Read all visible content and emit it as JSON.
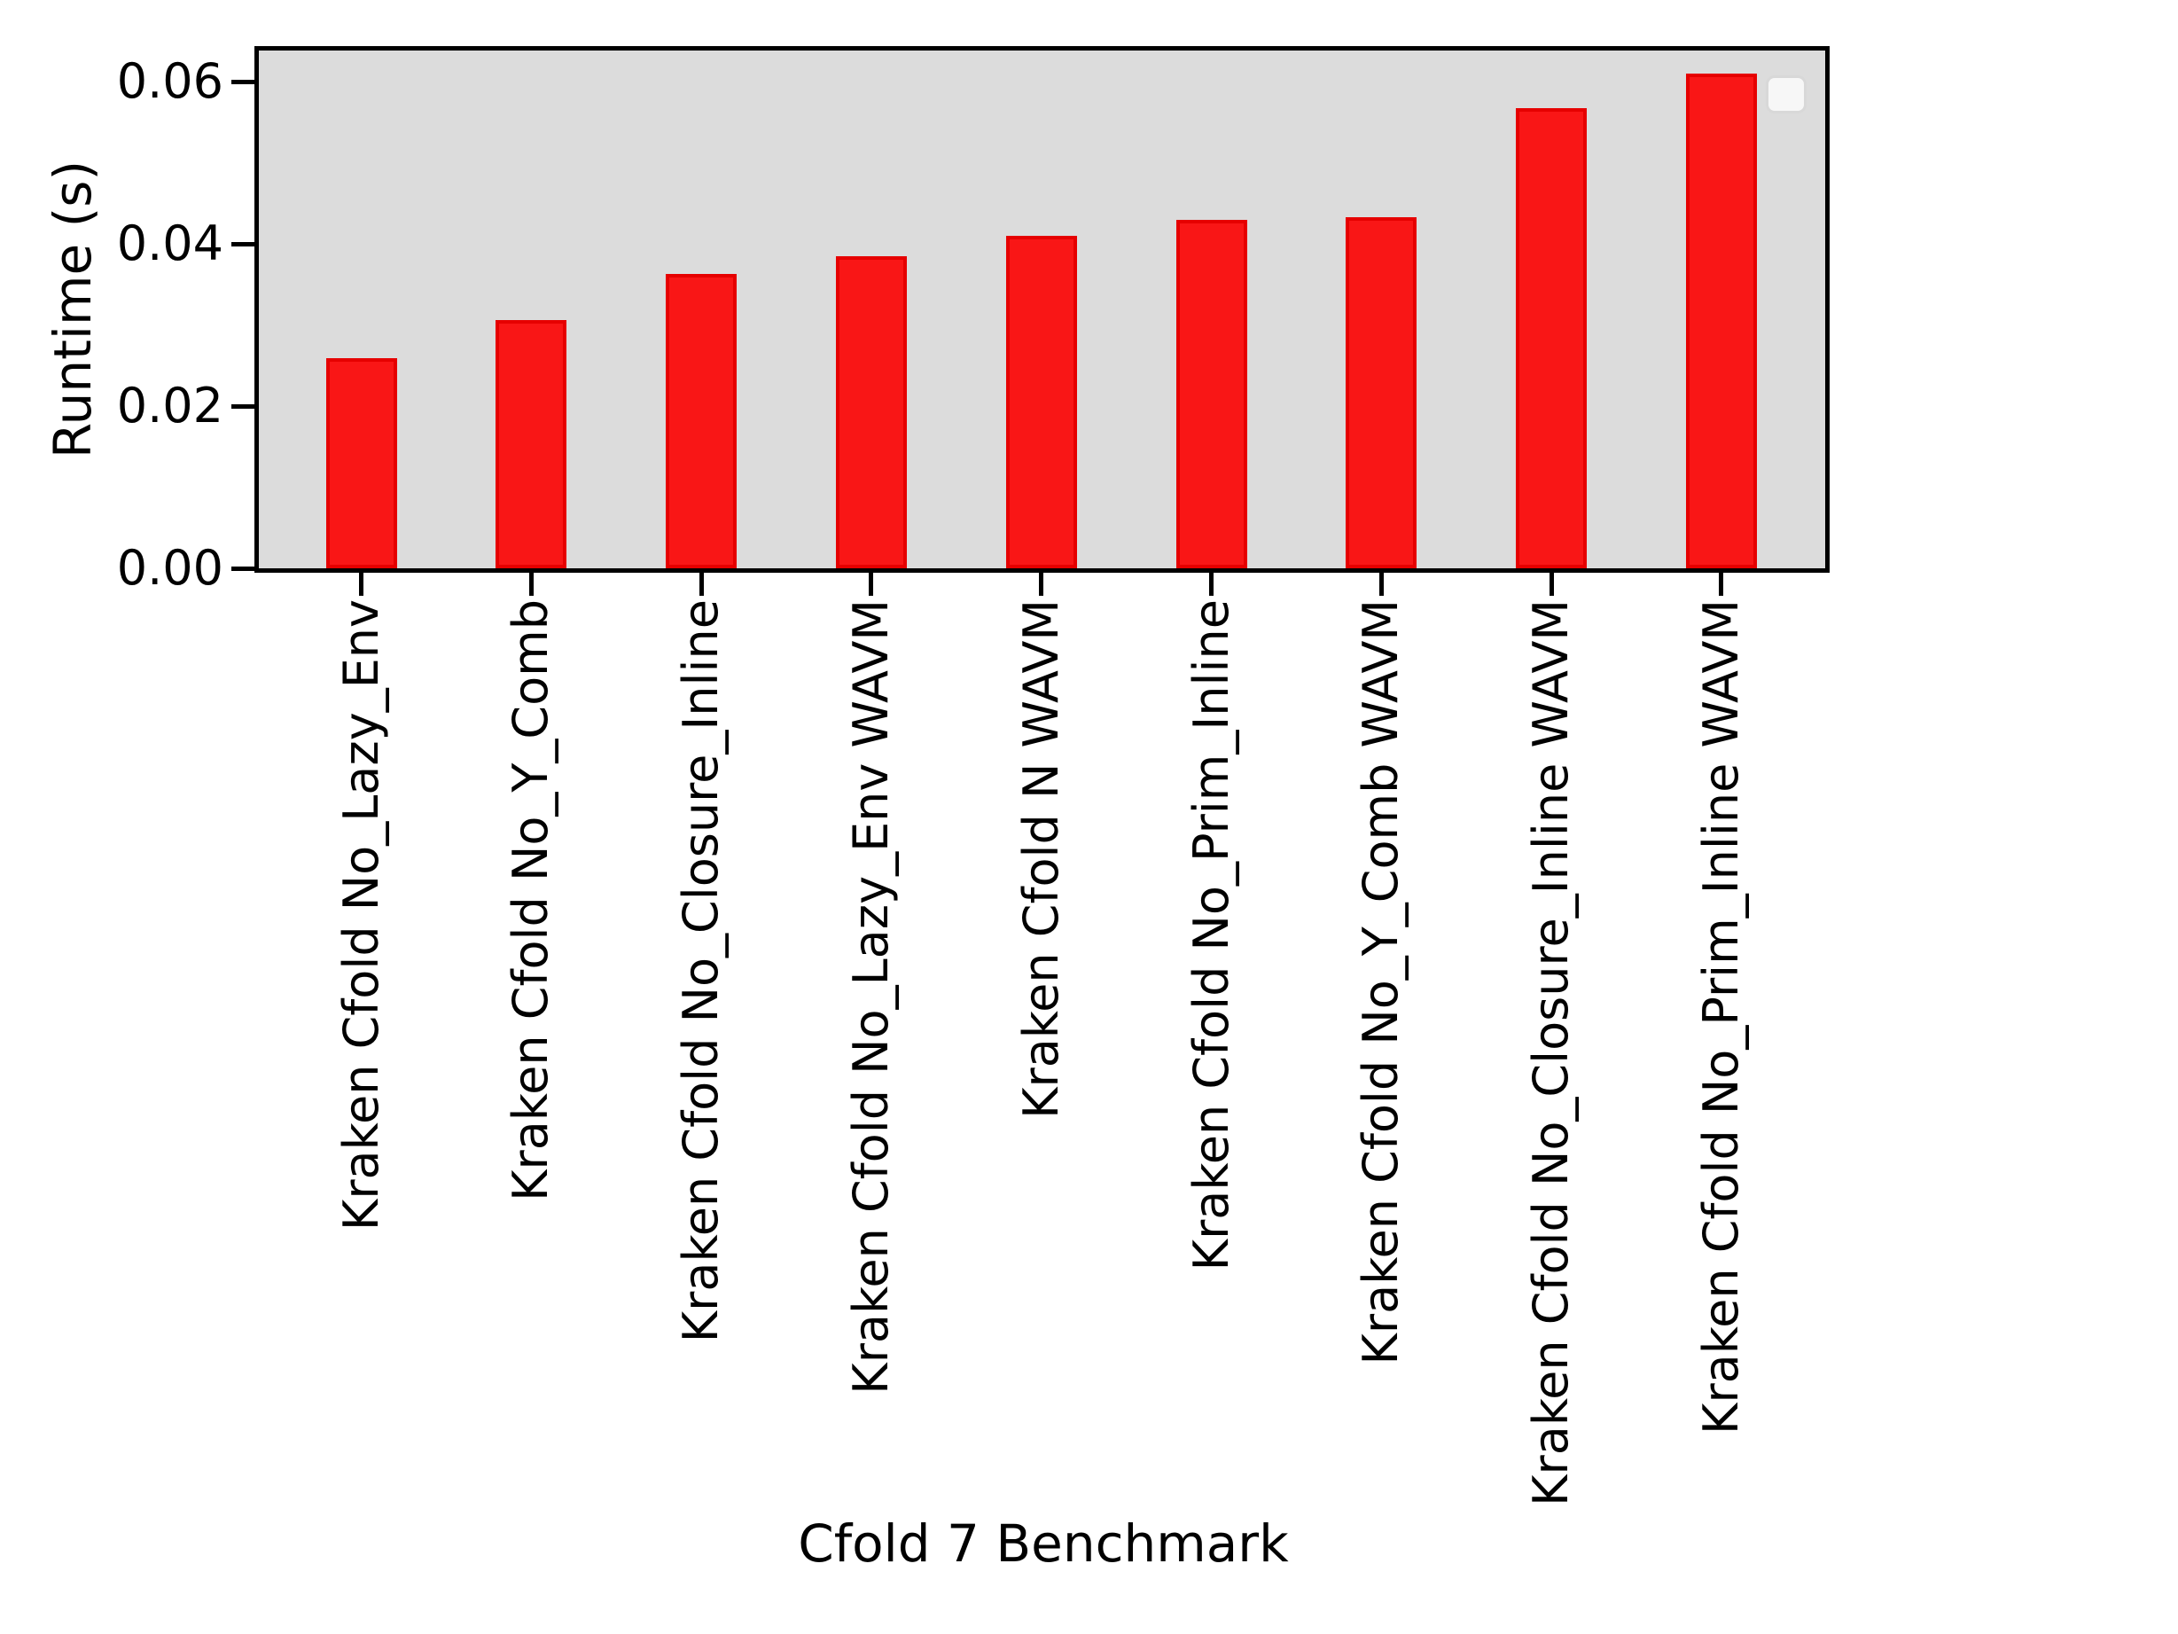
{
  "chart_data": {
    "type": "bar",
    "title": "",
    "xlabel": "Cfold 7 Benchmark",
    "ylabel": "Runtime (s)",
    "categories": [
      "Kraken Cfold No_Lazy_Env",
      "Kraken Cfold No_Y_Comb",
      "Kraken Cfold No_Closure_Inline",
      "Kraken Cfold No_Lazy_Env WAVM",
      "Kraken Cfold N WAVM",
      "Kraken Cfold No_Prim_Inline",
      "Kraken Cfold No_Y_Comb WAVM",
      "Kraken Cfold No_Closure_Inline WAVM",
      "Kraken Cfold No_Prim_Inline WAVM"
    ],
    "values": [
      0.0259,
      0.0306,
      0.0363,
      0.0385,
      0.041,
      0.0429,
      0.0433,
      0.0567,
      0.061
    ],
    "yticks": [
      0.0,
      0.02,
      0.04,
      0.06
    ],
    "ytick_labels": [
      "0.00",
      "0.02",
      "0.04",
      "0.06"
    ],
    "ylim": [
      0,
      0.064
    ],
    "grid": false,
    "legend": {
      "present": true,
      "entries": [],
      "position": "upper right"
    },
    "colors": {
      "bar_fill": "#f91616",
      "bar_edge": "#e60000",
      "plot_background": "#dcdcdc",
      "figure_background": "#ffffff",
      "axis": "#000000",
      "text": "#000000"
    }
  }
}
